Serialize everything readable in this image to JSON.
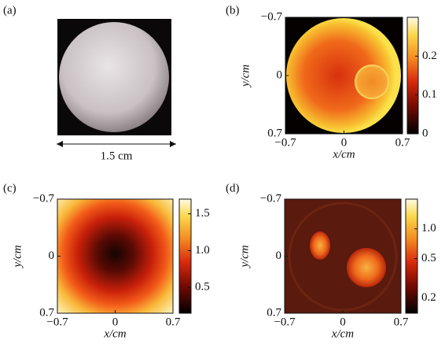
{
  "chart_data": [
    {
      "type": "image",
      "panel_label": "(a)",
      "scale_label": "1.5 cm"
    },
    {
      "type": "image",
      "panel_label": "(b)",
      "xlabel": "x/cm",
      "ylabel": "y/cm",
      "xlim": [
        -0.7,
        0.7
      ],
      "ylim": [
        -0.7,
        0.7
      ],
      "xticks": [
        {
          "value": -0.7,
          "label": "−0.7"
        },
        0,
        0.7
      ],
      "yticks": [
        {
          "value": -0.7,
          "label": "−0.7"
        },
        0,
        0.7
      ],
      "clim": [
        0,
        0.3
      ],
      "cticks": [
        0,
        0.1,
        0.2
      ]
    },
    {
      "type": "image",
      "panel_label": "(c)",
      "xlabel": "x/cm",
      "ylabel": "y/cm",
      "xlim": [
        -0.7,
        0.7
      ],
      "ylim": [
        -0.7,
        0.7
      ],
      "xticks": [
        {
          "value": -0.7,
          "label": "−0.7"
        },
        0,
        0.7
      ],
      "yticks": [
        {
          "value": -0.7,
          "label": "−0.7"
        },
        0,
        0.7
      ],
      "clim": [
        0.15,
        1.7
      ],
      "cticks": [
        0.5,
        {
          "value": 1.0,
          "label": "1.0"
        },
        1.5
      ]
    },
    {
      "type": "image",
      "panel_label": "(d)",
      "xlabel": "x/cm",
      "ylabel": "y/cm",
      "xlim": [
        -0.7,
        0.7
      ],
      "ylim": [
        -0.7,
        0.7
      ],
      "xticks": [
        {
          "value": -0.7,
          "label": "−0.7"
        },
        0,
        0.7
      ],
      "yticks": [
        {
          "value": -0.7,
          "label": "−0.7"
        },
        0,
        0.7
      ],
      "clim": [
        0.14,
        2
      ],
      "clog": true,
      "cticks": [
        0.2,
        0.5,
        {
          "value": 1.0,
          "label": "1.0"
        }
      ]
    }
  ]
}
